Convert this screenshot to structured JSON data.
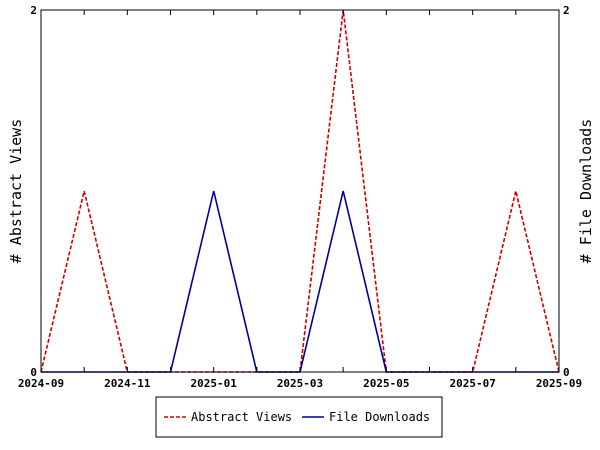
{
  "chart_data": {
    "type": "line",
    "x": [
      "2024-09",
      "2024-10",
      "2024-11",
      "2024-12",
      "2025-01",
      "2025-02",
      "2025-03",
      "2025-04",
      "2025-05",
      "2025-06",
      "2025-07",
      "2025-08",
      "2025-09"
    ],
    "x_tick_labels": [
      "2024-09",
      "2024-11",
      "2025-01",
      "2025-03",
      "2025-05",
      "2025-07",
      "2025-09"
    ],
    "series": [
      {
        "name": "Abstract Views",
        "axis": "left",
        "color": "#cc0000",
        "style": "dashed",
        "values": [
          0,
          1,
          0,
          0,
          0,
          0,
          0,
          2,
          0,
          0,
          0,
          1,
          0
        ]
      },
      {
        "name": "File Downloads",
        "axis": "right",
        "color": "#000099",
        "style": "solid",
        "values": [
          0,
          0,
          0,
          0,
          1,
          0,
          0,
          1,
          0,
          0,
          0,
          0,
          0
        ]
      }
    ],
    "ylabel_left": "# Abstract Views",
    "ylabel_right": "# File Downloads",
    "ylim_left": [
      0,
      2
    ],
    "ylim_right": [
      0,
      2
    ],
    "y_tick_labels_left": [
      "0",
      "2"
    ],
    "y_tick_labels_right": [
      "0",
      "2"
    ],
    "grid": false,
    "legend_position": "bottom-center"
  }
}
